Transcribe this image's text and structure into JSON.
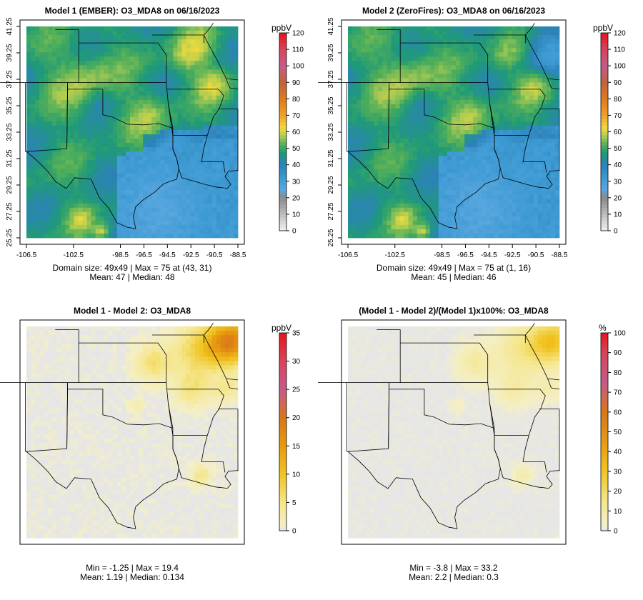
{
  "panels": [
    {
      "id": "m1",
      "title": "Model 1 (EMBER): O3_MDA8 on 06/16/2023",
      "unit": "ppbV",
      "kind": "abs",
      "show_axes": true,
      "stat_line1": "Domain size: 49x49 | Max = 75 at (43, 31)",
      "stat_line2": "Mean: 47 |  Median: 48"
    },
    {
      "id": "m2",
      "title": "Model 2 (ZeroFires): O3_MDA8 on 06/16/2023",
      "unit": "ppbV",
      "kind": "abs",
      "show_axes": true,
      "stat_line1": "Domain size: 49x49 | Max = 75 at (1, 16)",
      "stat_line2": "Mean: 45 |  Median: 46"
    },
    {
      "id": "diff",
      "title": "Model 1 - Model 2: O3_MDA8",
      "unit": "ppbV",
      "kind": "diff",
      "show_axes": false,
      "stat_line1": "Min = -1.25 | Max = 19.4",
      "stat_line2": "Mean: 1.19 |  Median: 0.134"
    },
    {
      "id": "pct",
      "title": "(Model 1 - Model 2)/(Model 1)x100%: O3_MDA8",
      "unit": "%",
      "kind": "pct",
      "show_axes": false,
      "stat_line1": "Min = -3.8 | Max = 33.2",
      "stat_line2": "Mean: 2.2 |  Median: 0.3"
    }
  ],
  "axes": {
    "x_ticks": [
      "-106.5",
      "-102.5",
      "-98.5",
      "-96.5",
      "-94.5",
      "-92.5",
      "-90.5",
      "-88.5"
    ],
    "y_ticks": [
      "25.25",
      "27.25",
      "29.25",
      "31.25",
      "33.25",
      "35.25",
      "37.25",
      "39.25",
      "41.25"
    ]
  },
  "colorbars": {
    "abs": {
      "ticks": [
        "0",
        "10",
        "20",
        "30",
        "40",
        "50",
        "60",
        "70",
        "80",
        "90",
        "100",
        "110",
        "120"
      ]
    },
    "diff": {
      "ticks": [
        "0",
        "5",
        "10",
        "15",
        "20",
        "25",
        "30",
        "35"
      ]
    },
    "pct": {
      "ticks": [
        "0",
        "10",
        "20",
        "30",
        "40",
        "50",
        "60",
        "70",
        "80",
        "90",
        "100"
      ]
    }
  },
  "chart_data": [
    {
      "type": "heatmap",
      "title": "Model 1 (EMBER): O3_MDA8 on 06/16/2023",
      "units": "ppbV",
      "grid": "49x49",
      "x_range": [
        -106.5,
        -88.5
      ],
      "y_range": [
        25.25,
        41.25
      ],
      "colorbar_range": [
        0,
        120
      ],
      "stats": {
        "max": 75,
        "max_at": [
          43,
          31
        ],
        "mean": 47,
        "median": 48
      }
    },
    {
      "type": "heatmap",
      "title": "Model 2 (ZeroFires): O3_MDA8 on 06/16/2023",
      "units": "ppbV",
      "grid": "49x49",
      "x_range": [
        -106.5,
        -88.5
      ],
      "y_range": [
        25.25,
        41.25
      ],
      "colorbar_range": [
        0,
        120
      ],
      "stats": {
        "max": 75,
        "max_at": [
          1,
          16
        ],
        "mean": 45,
        "median": 46
      }
    },
    {
      "type": "heatmap",
      "title": "Model 1 - Model 2: O3_MDA8",
      "units": "ppbV",
      "colorbar_range": [
        0,
        35
      ],
      "stats": {
        "min": -1.25,
        "max": 19.4,
        "mean": 1.19,
        "median": 0.134
      }
    },
    {
      "type": "heatmap",
      "title": "(Model 1 - Model 2)/(Model 1)x100%: O3_MDA8",
      "units": "%",
      "colorbar_range": [
        0,
        100
      ],
      "stats": {
        "min": -3.8,
        "max": 33.2,
        "mean": 2.2,
        "median": 0.3
      }
    }
  ]
}
